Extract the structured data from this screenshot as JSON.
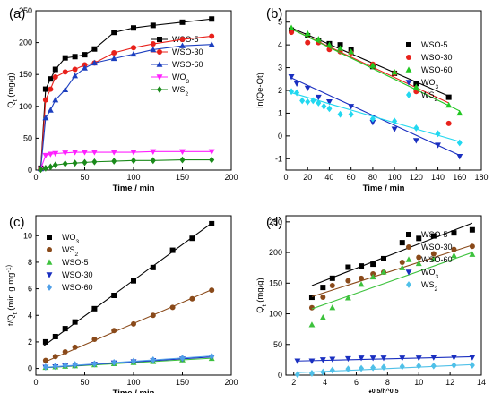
{
  "chart_data": [
    {
      "type": "scatter",
      "panel_label": "(a)",
      "xlabel": "Time / min",
      "ylabel": "Q_t (mg/g)",
      "xlim": [
        0,
        200
      ],
      "ylim": [
        0,
        250
      ],
      "xticks": [
        "0",
        "50",
        "100",
        "150",
        "200"
      ],
      "yticks": [
        "0",
        "50",
        "100",
        "150",
        "200",
        "250"
      ],
      "legend": "right",
      "series": [
        {
          "name": "WSO-5",
          "color": "#000000",
          "marker": "square",
          "connect": "line",
          "x": [
            5,
            10,
            15,
            20,
            30,
            40,
            50,
            60,
            80,
            100,
            120,
            150,
            180
          ],
          "y": [
            3,
            127,
            143,
            158,
            176,
            178,
            181,
            190,
            216,
            223,
            227,
            232,
            237
          ]
        },
        {
          "name": "WSO-30",
          "color": "#e8211b",
          "marker": "circle",
          "connect": "line",
          "x": [
            5,
            10,
            15,
            20,
            30,
            40,
            50,
            60,
            80,
            100,
            120,
            150,
            180
          ],
          "y": [
            2,
            110,
            127,
            146,
            154,
            158,
            165,
            168,
            184,
            192,
            198,
            205,
            210
          ]
        },
        {
          "name": "WSO-60",
          "color": "#1c3fbf",
          "marker": "triangle-up",
          "connect": "line",
          "x": [
            5,
            10,
            15,
            20,
            30,
            40,
            50,
            60,
            80,
            100,
            120,
            150,
            180
          ],
          "y": [
            2,
            82,
            94,
            110,
            126,
            148,
            160,
            168,
            175,
            182,
            189,
            195,
            197
          ]
        },
        {
          "name": "WO_3",
          "color": "#ff20ff",
          "marker": "triangle-down",
          "connect": "line",
          "x": [
            5,
            10,
            15,
            20,
            30,
            40,
            50,
            60,
            80,
            100,
            120,
            150,
            180
          ],
          "y": [
            2,
            23,
            25,
            26,
            27,
            28,
            28,
            28,
            28,
            28,
            29,
            29,
            29
          ]
        },
        {
          "name": "WS_2",
          "color": "#1a8a1a",
          "marker": "diamond",
          "connect": "line",
          "x": [
            5,
            10,
            15,
            20,
            30,
            40,
            50,
            60,
            80,
            100,
            120,
            150,
            180
          ],
          "y": [
            1,
            3,
            5,
            8,
            10,
            11,
            12,
            13,
            14,
            15,
            15,
            16,
            16
          ]
        }
      ]
    },
    {
      "type": "scatter",
      "panel_label": "(b)",
      "xlabel": "Time / min",
      "ylabel": "ln(Qe-Qt)",
      "xlim": [
        0,
        180
      ],
      "ylim": [
        -1.5,
        5.5
      ],
      "xticks": [
        "0",
        "20",
        "40",
        "60",
        "80",
        "100",
        "120",
        "140",
        "160",
        "180"
      ],
      "yticks": [
        "-1",
        "0",
        "1",
        "2",
        "3",
        "4",
        "5"
      ],
      "legend": "right",
      "series": [
        {
          "name": "WSO-5",
          "color": "#000000",
          "marker": "square",
          "x": [
            5,
            20,
            30,
            40,
            50,
            60,
            80,
            100,
            120,
            150
          ],
          "y": [
            4.65,
            4.4,
            4.2,
            4.05,
            4.0,
            3.8,
            3.05,
            2.75,
            2.3,
            1.7
          ],
          "fit": [
            [
              5,
              4.75
            ],
            [
              150,
              1.75
            ]
          ]
        },
        {
          "name": "WSO-30",
          "color": "#e8211b",
          "marker": "circle",
          "x": [
            5,
            20,
            30,
            40,
            50,
            60,
            80,
            100,
            120,
            150
          ],
          "y": [
            4.55,
            4.1,
            4.1,
            3.8,
            3.7,
            3.65,
            3.15,
            2.75,
            1.95,
            0.55
          ],
          "fit": [
            [
              5,
              4.7
            ],
            [
              150,
              1.45
            ]
          ]
        },
        {
          "name": "WSO-60",
          "color": "#22c722",
          "marker": "triangle-up",
          "x": [
            5,
            20,
            30,
            40,
            50,
            60,
            80,
            100,
            120,
            150,
            160
          ],
          "y": [
            4.75,
            4.5,
            4.25,
            4.0,
            3.85,
            3.7,
            3.1,
            2.8,
            2.15,
            1.35,
            1.0
          ],
          "fit": [
            [
              5,
              4.7
            ],
            [
              160,
              1.1
            ]
          ]
        },
        {
          "name": "WO_3",
          "color": "#1a2fc0",
          "marker": "triangle-down",
          "x": [
            5,
            10,
            20,
            30,
            40,
            60,
            80,
            100,
            120,
            140,
            160
          ],
          "y": [
            2.6,
            2.3,
            2.1,
            1.7,
            1.5,
            1.3,
            0.6,
            0.3,
            -0.2,
            -0.4,
            -0.9
          ],
          "fit": [
            [
              5,
              2.55
            ],
            [
              160,
              -0.85
            ]
          ]
        },
        {
          "name": "WS_2",
          "color": "#22d8f0",
          "marker": "diamond",
          "x": [
            5,
            10,
            15,
            20,
            25,
            30,
            35,
            40,
            50,
            60,
            80,
            100,
            120,
            140,
            160
          ],
          "y": [
            1.95,
            1.9,
            1.55,
            1.5,
            1.55,
            1.45,
            1.3,
            1.2,
            0.95,
            0.95,
            0.75,
            0.65,
            0.35,
            0.1,
            -0.3
          ],
          "fit": [
            [
              5,
              1.9
            ],
            [
              160,
              -0.25
            ]
          ]
        }
      ]
    },
    {
      "type": "scatter",
      "panel_label": "(c)",
      "xlabel": "Time / min",
      "ylabel": "t/Q_t (min g mg^-1)",
      "xlim": [
        0,
        200
      ],
      "ylim": [
        -0.5,
        11.5
      ],
      "xticks": [
        "0",
        "50",
        "100",
        "150",
        "200"
      ],
      "yticks": [
        "0",
        "2",
        "4",
        "6",
        "8",
        "10"
      ],
      "legend": "left",
      "series": [
        {
          "name": "WO_3",
          "color": "#000000",
          "marker": "square",
          "x": [
            10,
            20,
            30,
            40,
            60,
            80,
            100,
            120,
            140,
            160,
            180
          ],
          "y": [
            2.0,
            2.4,
            3.0,
            3.5,
            4.5,
            5.5,
            6.6,
            7.6,
            8.9,
            9.8,
            10.9
          ],
          "fit": [
            [
              8,
              1.7
            ],
            [
              182,
              11.05
            ]
          ]
        },
        {
          "name": "WS_2",
          "color": "#8a4a1a",
          "marker": "circle",
          "x": [
            10,
            20,
            30,
            40,
            60,
            80,
            100,
            120,
            140,
            160,
            180
          ],
          "y": [
            0.6,
            0.9,
            1.25,
            1.6,
            2.2,
            2.85,
            3.35,
            4.0,
            4.6,
            5.25,
            5.9
          ],
          "fit": [
            [
              8,
              0.45
            ],
            [
              182,
              6.0
            ]
          ]
        },
        {
          "name": "WSO-5",
          "color": "#3dc23d",
          "marker": "triangle-up",
          "x": [
            10,
            20,
            30,
            40,
            60,
            80,
            100,
            120,
            150,
            180
          ],
          "y": [
            0.08,
            0.12,
            0.16,
            0.2,
            0.27,
            0.36,
            0.44,
            0.52,
            0.64,
            0.75
          ],
          "fit": [
            [
              8,
              0.05
            ],
            [
              182,
              0.78
            ]
          ]
        },
        {
          "name": "WSO-30",
          "color": "#1a2fc0",
          "marker": "triangle-down",
          "x": [
            10,
            20,
            30,
            40,
            60,
            80,
            100,
            120,
            150,
            180
          ],
          "y": [
            0.09,
            0.13,
            0.19,
            0.25,
            0.32,
            0.42,
            0.51,
            0.6,
            0.72,
            0.85
          ],
          "fit": [
            [
              8,
              0.06
            ],
            [
              182,
              0.88
            ]
          ]
        },
        {
          "name": "WSO-60",
          "color": "#4f9fe8",
          "marker": "diamond",
          "x": [
            10,
            20,
            30,
            40,
            60,
            80,
            100,
            120,
            150,
            180
          ],
          "y": [
            0.12,
            0.18,
            0.24,
            0.3,
            0.35,
            0.45,
            0.55,
            0.65,
            0.78,
            0.92
          ],
          "fit": [
            [
              8,
              0.08
            ],
            [
              182,
              0.95
            ]
          ]
        }
      ]
    },
    {
      "type": "scatter",
      "panel_label": "(d)",
      "xlabel": "t^0.5/h^0.5",
      "ylabel": "Q_t (mg/g)",
      "xlim": [
        1.5,
        14
      ],
      "ylim": [
        0,
        260
      ],
      "xticks": [
        "2",
        "4",
        "6",
        "8",
        "10",
        "12",
        "14"
      ],
      "yticks": [
        "0",
        "50",
        "100",
        "150",
        "200",
        "250"
      ],
      "legend": "right",
      "series": [
        {
          "name": "WSO-5",
          "color": "#000000",
          "marker": "square",
          "x": [
            3.16,
            3.87,
            4.47,
            5.48,
            6.32,
            7.07,
            7.75,
            8.94,
            10.0,
            10.95,
            12.25,
            13.42
          ],
          "y": [
            127,
            143,
            158,
            176,
            178,
            181,
            190,
            216,
            223,
            227,
            232,
            237
          ],
          "fit": [
            [
              3.16,
              146
            ],
            [
              13.42,
              248
            ]
          ]
        },
        {
          "name": "WSO-30",
          "color": "#8a4a1a",
          "marker": "circle",
          "x": [
            3.16,
            3.87,
            4.47,
            5.48,
            6.32,
            7.07,
            7.75,
            8.94,
            10.0,
            10.95,
            12.25,
            13.42
          ],
          "y": [
            110,
            127,
            146,
            154,
            158,
            165,
            168,
            184,
            192,
            198,
            205,
            210
          ],
          "fit": [
            [
              3.16,
              128
            ],
            [
              13.42,
              212
            ]
          ]
        },
        {
          "name": "WSO-60",
          "color": "#3dc23d",
          "marker": "triangle-up",
          "x": [
            3.16,
            3.87,
            4.47,
            5.48,
            6.32,
            7.07,
            7.75,
            8.94,
            10.0,
            10.95,
            12.25,
            13.42
          ],
          "y": [
            82,
            94,
            110,
            126,
            148,
            160,
            168,
            175,
            182,
            189,
            195,
            197
          ],
          "fit": [
            [
              3.16,
              108
            ],
            [
              13.42,
              200
            ]
          ]
        },
        {
          "name": "WO_3",
          "color": "#1a2fc0",
          "marker": "triangle-down",
          "x": [
            2.24,
            3.16,
            3.87,
            4.47,
            5.48,
            6.32,
            7.07,
            7.75,
            8.94,
            10.0,
            10.95,
            12.25,
            13.42
          ],
          "y": [
            23,
            23,
            25,
            26,
            27,
            28,
            28,
            28,
            28,
            28,
            29,
            29,
            29
          ],
          "fit": [
            [
              2.24,
              23
            ],
            [
              13.42,
              30
            ]
          ]
        },
        {
          "name": "WS_2",
          "color": "#4fc0e8",
          "marker": "diamond",
          "x": [
            2.24,
            3.16,
            3.87,
            4.47,
            5.48,
            6.32,
            7.07,
            7.75,
            8.94,
            10.0,
            10.95,
            12.25,
            13.42
          ],
          "y": [
            1,
            3,
            5,
            8,
            10,
            11,
            12,
            13,
            14,
            15,
            15,
            16,
            16
          ],
          "fit": [
            [
              2.24,
              4
            ],
            [
              13.42,
              17
            ]
          ]
        }
      ]
    }
  ]
}
